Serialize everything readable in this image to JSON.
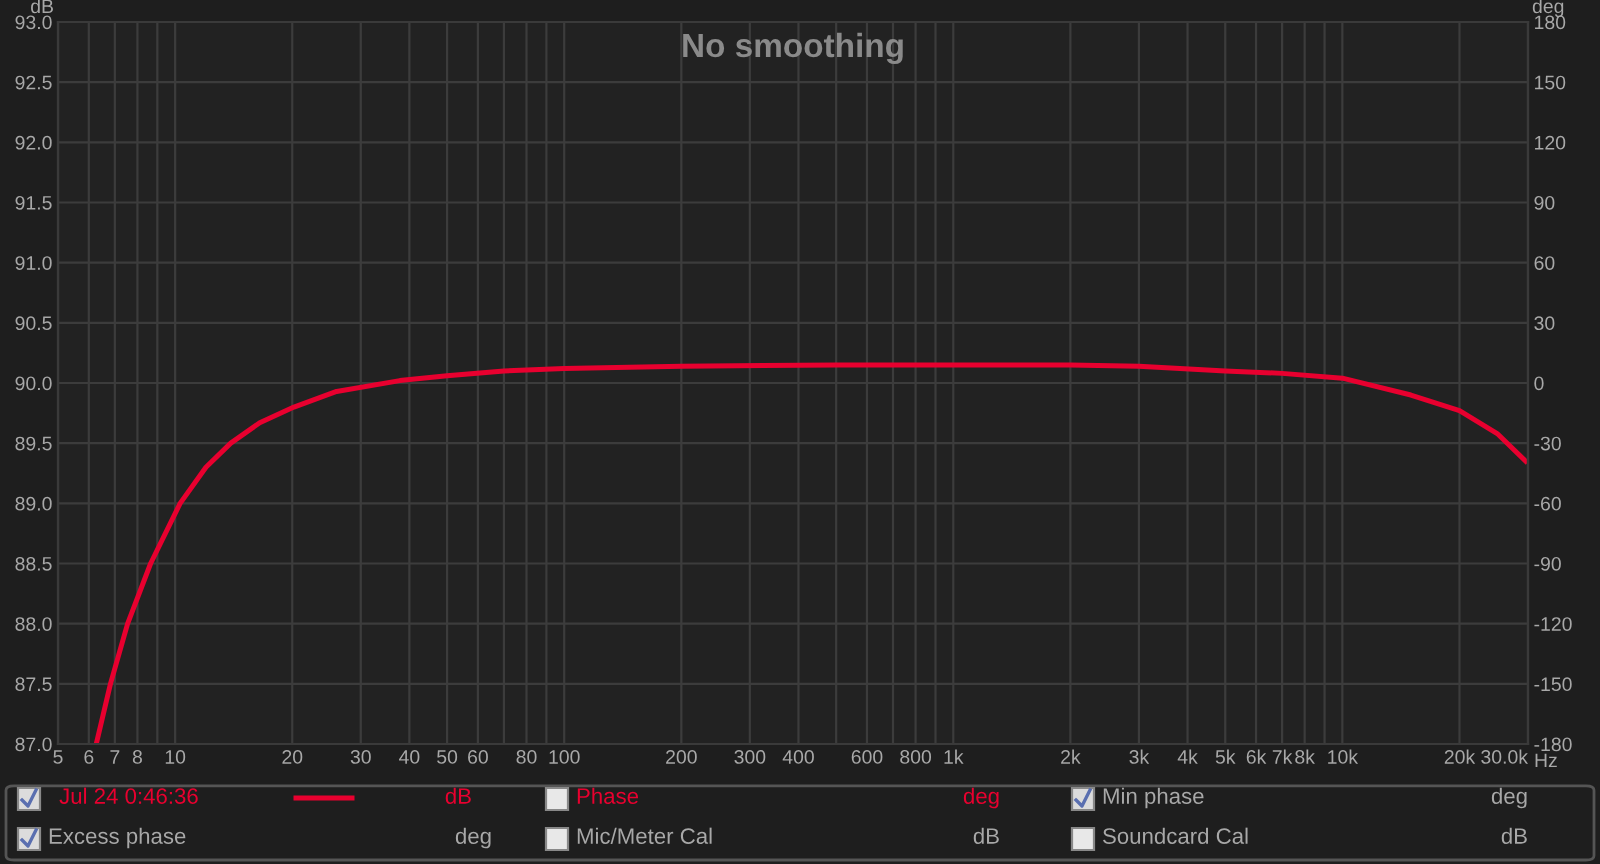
{
  "chart_data": {
    "type": "line",
    "title": "No smoothing",
    "xlabel": "Hz",
    "ylabel": "dB",
    "y2label": "deg",
    "log": "x",
    "grid": true,
    "legend": "bottom",
    "marker": "none",
    "line_style": "solid",
    "xlim": [
      5,
      30000
    ],
    "ylim": [
      87.0,
      93.0
    ],
    "y2lim": [
      -180,
      180
    ],
    "xticks": [
      5,
      6,
      7,
      8,
      {
        "value": 9,
        "label": null
      },
      10,
      20,
      30,
      40,
      50,
      60,
      {
        "value": 70,
        "label": null
      },
      80,
      {
        "value": 90,
        "label": null
      },
      100,
      200,
      300,
      400,
      {
        "value": 500,
        "label": null
      },
      600,
      {
        "value": 700,
        "label": null
      },
      800,
      {
        "value": 900,
        "label": null
      },
      {
        "value": 1000,
        "label": "1k"
      },
      {
        "value": 2000,
        "label": "2k"
      },
      {
        "value": 3000,
        "label": "3k"
      },
      {
        "value": 4000,
        "label": "4k"
      },
      {
        "value": 5000,
        "label": "5k"
      },
      {
        "value": 6000,
        "label": "6k"
      },
      {
        "value": 7000,
        "label": "7k"
      },
      {
        "value": 8000,
        "label": "8k"
      },
      {
        "value": 9000,
        "label": null
      },
      {
        "value": 10000,
        "label": "10k"
      },
      {
        "value": 20000,
        "label": "20k"
      },
      {
        "value": 30000,
        "label": "30.0k"
      }
    ],
    "yticks": [
      {
        "value": 87.0,
        "label": "87.0"
      },
      {
        "value": 87.5,
        "label": "87.5"
      },
      {
        "value": 88.0,
        "label": "88.0"
      },
      {
        "value": 88.5,
        "label": "88.5"
      },
      {
        "value": 89.0,
        "label": "89.0"
      },
      {
        "value": 89.5,
        "label": "89.5"
      },
      {
        "value": 90.0,
        "label": "90.0"
      },
      {
        "value": 90.5,
        "label": "90.5"
      },
      {
        "value": 91.0,
        "label": "91.0"
      },
      {
        "value": 91.5,
        "label": "91.5"
      },
      {
        "value": 92.0,
        "label": "92.0"
      },
      {
        "value": 92.5,
        "label": "92.5"
      },
      {
        "value": 93.0,
        "label": "93.0"
      }
    ],
    "y2ticks": [
      -180,
      -150,
      -120,
      -90,
      -60,
      -30,
      0,
      30,
      60,
      90,
      120,
      150,
      180
    ],
    "series": [
      {
        "name": "Jul 24 0:46:36",
        "color": "#e8002f",
        "x": [
          6.27,
          6.82,
          7.55,
          8.65,
          10.3,
          12,
          13.9,
          16.5,
          20.2,
          26,
          37.8,
          50,
          70,
          100,
          200,
          500,
          1000,
          2000,
          3000,
          5000,
          7000,
          10000,
          15000,
          20000,
          25000,
          29600
        ],
        "values": [
          87.0,
          87.5,
          88.0,
          88.5,
          89.0,
          89.3,
          89.5,
          89.67,
          89.8,
          89.93,
          90.02,
          90.06,
          90.1,
          90.12,
          90.14,
          90.15,
          90.15,
          90.15,
          90.14,
          90.1,
          90.08,
          90.04,
          89.9,
          89.77,
          89.58,
          89.35
        ]
      }
    ],
    "annotations": [
      "dB",
      "Phase",
      "deg",
      "Min phase",
      "deg",
      "Excess phase",
      "deg",
      "Mic/Meter Cal",
      "dB",
      "Soundcard Cal",
      "dB"
    ]
  }
}
